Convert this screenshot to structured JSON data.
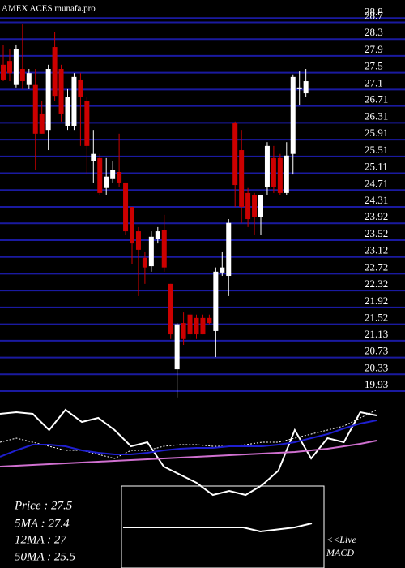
{
  "chart_data": [
    {
      "type": "candlestick",
      "title": "AMEX  ACES munafa.pro",
      "up_color": "#ffffff",
      "down_color": "#cc0000",
      "grid": true,
      "grid_color": "#1a1aa0",
      "ylim": [
        19.68,
        29.23
      ],
      "yticks": [
        28.8,
        28.7,
        28.3,
        27.9,
        27.5,
        27.1,
        26.71,
        26.31,
        25.91,
        25.51,
        25.11,
        24.71,
        24.31,
        23.92,
        23.52,
        23.12,
        22.72,
        22.32,
        21.92,
        21.52,
        21.13,
        20.73,
        20.33,
        19.93
      ],
      "open": [
        27.69,
        27.78,
        27.21,
        27.59,
        27.21,
        27.21,
        26.53,
        26.14,
        28.11,
        27.59,
        26.24,
        26.24,
        27.34,
        26.82,
        25.41,
        25.47,
        24.76,
        24.99,
        25.14,
        24.89,
        24.31,
        23.73,
        23.1,
        22.9,
        23.54,
        23.77,
        22.48,
        20.45,
        21.55,
        21.75,
        21.67,
        21.67,
        21.67,
        21.36,
        22.75,
        22.67,
        26.3,
        25.66,
        24.64,
        24.6,
        24.06,
        24.79,
        25.47,
        25.47,
        24.64,
        25.57,
        27.11,
        27.01
      ],
      "high": [
        28.17,
        28.07,
        28.17,
        28.65,
        27.59,
        27.59,
        26.82,
        27.69,
        28.46,
        27.69,
        27.11,
        27.49,
        27.49,
        26.92,
        26.14,
        25.57,
        25.47,
        25.41,
        26.05,
        24.89,
        24.31,
        23.83,
        23.25,
        23.73,
        23.83,
        24.12,
        22.48,
        21.55,
        21.8,
        21.8,
        21.75,
        21.75,
        21.75,
        22.87,
        23.25,
        24.02,
        26.34,
        26.14,
        24.76,
        24.64,
        24.6,
        25.85,
        25.76,
        25.57,
        25.85,
        27.46,
        27.53,
        27.59
      ],
      "low": [
        27.3,
        27.3,
        27.15,
        27.11,
        27.11,
        25.18,
        26.05,
        25.66,
        26.82,
        26.34,
        26.14,
        26.14,
        25.76,
        25.08,
        24.89,
        24.6,
        24.6,
        24.89,
        24.79,
        23.64,
        22.96,
        22.19,
        22.48,
        22.77,
        23.44,
        22.77,
        21.17,
        19.78,
        21.03,
        21.17,
        21.17,
        21.28,
        21.52,
        20.74,
        22.67,
        22.19,
        24.31,
        23.93,
        23.83,
        23.64,
        23.64,
        24.6,
        24.64,
        24.6,
        24.6,
        25.08,
        26.72,
        26.92
      ],
      "close": [
        27.34,
        27.49,
        28.07,
        27.3,
        27.49,
        26.05,
        26.05,
        27.59,
        26.95,
        26.53,
        26.92,
        27.4,
        26.92,
        25.76,
        25.57,
        24.64,
        25.03,
        25.18,
        24.89,
        23.73,
        23.44,
        23.29,
        22.87,
        23.6,
        23.73,
        22.87,
        21.28,
        21.52,
        21.17,
        21.28,
        21.28,
        21.28,
        21.55,
        22.77,
        22.87,
        23.93,
        24.83,
        24.31,
        24.02,
        24.06,
        24.6,
        25.76,
        24.79,
        24.64,
        25.53,
        27.4,
        27.15,
        27.3
      ]
    },
    {
      "type": "line",
      "ylim": [
        -15,
        100
      ],
      "series": [
        {
          "color": "#ffffff",
          "dashed": false,
          "values": [
            90,
            92,
            90,
            70,
            95,
            80,
            85,
            70,
            50,
            55,
            25,
            15,
            5,
            -10,
            -5,
            -10,
            2,
            20,
            70,
            35,
            60,
            55,
            92,
            88
          ]
        },
        {
          "color": "#ffffff",
          "dashed": true,
          "values": [
            55,
            60,
            55,
            50,
            45,
            45,
            40,
            35,
            45,
            45,
            50,
            52,
            52,
            50,
            50,
            52,
            55,
            55,
            60,
            65,
            70,
            75,
            85,
            95
          ]
        },
        {
          "color": "#1f1fd0",
          "dashed": false,
          "values": [
            37,
            45,
            52,
            52,
            50,
            45,
            42,
            40,
            40,
            42,
            45,
            47,
            48,
            48,
            50,
            50,
            50,
            52,
            55,
            60,
            65,
            72,
            78,
            82
          ]
        },
        {
          "color": "#d070d0",
          "dashed": false,
          "values": [
            25,
            26,
            27,
            28,
            29,
            30,
            31,
            32,
            33,
            34,
            35,
            36,
            37,
            38,
            39,
            40,
            41,
            42,
            43,
            45,
            47,
            50,
            53,
            57
          ]
        }
      ]
    },
    {
      "type": "line",
      "ylim": [
        -25,
        25
      ],
      "series": [
        {
          "color": "#ffffff",
          "dashed": false,
          "values": [
            0,
            0,
            0,
            0,
            0,
            0,
            0,
            0,
            -5,
            -2.5,
            0,
            5
          ]
        }
      ]
    }
  ],
  "stats": [
    "Price  : 27.5",
    "5MA : 27.4",
    "12MA : 27",
    "50MA : 25.5"
  ],
  "live_label": "<<Live",
  "macd_label": "MACD"
}
